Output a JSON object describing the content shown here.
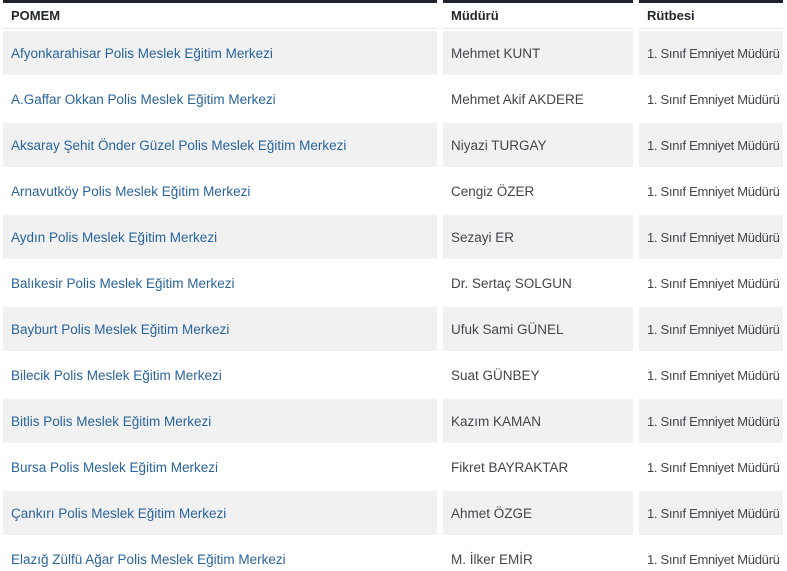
{
  "table": {
    "headers": {
      "pomem": "POMEM",
      "mudur": "Müdürü",
      "rutbe": "Rütbesi"
    },
    "rows": [
      {
        "pomem": "Afyonkarahisar Polis Meslek Eğitim Merkezi",
        "mudur": "Mehmet KUNT",
        "rutbe": "1. Sınıf Emniyet Müdürü"
      },
      {
        "pomem": "A.Gaffar Okkan Polis Meslek Eğitim Merkezi",
        "mudur": "Mehmet Akif AKDERE",
        "rutbe": "1. Sınıf Emniyet Müdürü"
      },
      {
        "pomem": "Aksaray Şehit Önder Güzel Polis Meslek Eğitim Merkezi",
        "mudur": "Niyazi TURGAY",
        "rutbe": "1. Sınıf Emniyet Müdürü"
      },
      {
        "pomem": "Arnavutköy Polis Meslek Eğitim Merkezi",
        "mudur": "Cengiz ÖZER",
        "rutbe": "1. Sınıf Emniyet Müdürü"
      },
      {
        "pomem": "Aydın Polis Meslek Eğitim Merkezi",
        "mudur": "Sezayi ER",
        "rutbe": "1. Sınıf Emniyet Müdürü"
      },
      {
        "pomem": "Balıkesir Polis Meslek Eğitim Merkezi",
        "mudur": "Dr. Sertaç SOLGUN",
        "rutbe": "1. Sınıf Emniyet Müdürü"
      },
      {
        "pomem": "Bayburt Polis Meslek Eğitim Merkezi",
        "mudur": "Ufuk Sami GÜNEL",
        "rutbe": "1. Sınıf Emniyet Müdürü"
      },
      {
        "pomem": "Bilecik Polis Meslek Eğitim Merkezi",
        "mudur": "Suat GÜNBEY",
        "rutbe": "1. Sınıf Emniyet Müdürü"
      },
      {
        "pomem": "Bitlis Polis Meslek Eğitim Merkezi",
        "mudur": "Kazım KAMAN",
        "rutbe": "1. Sınıf Emniyet Müdürü"
      },
      {
        "pomem": "Bursa Polis Meslek Eğitim Merkezi",
        "mudur": "Fikret BAYRAKTAR",
        "rutbe": "1. Sınıf Emniyet Müdürü"
      },
      {
        "pomem": "Çankırı Polis Meslek Eğitim Merkezi",
        "mudur": "Ahmet ÖZGE",
        "rutbe": "1. Sınıf Emniyet Müdürü"
      },
      {
        "pomem": "Elazığ Zülfü Ağar Polis Meslek Eğitim Merkezi",
        "mudur": "M. İlker EMİR",
        "rutbe": "1. Sınıf Emniyet Müdürü"
      }
    ],
    "colors": {
      "header_top_border": "#20242b",
      "header_text": "#23272e",
      "link": "#29639c",
      "stripe_row": "#f1f1f1",
      "cell_text": "#41464c"
    }
  }
}
